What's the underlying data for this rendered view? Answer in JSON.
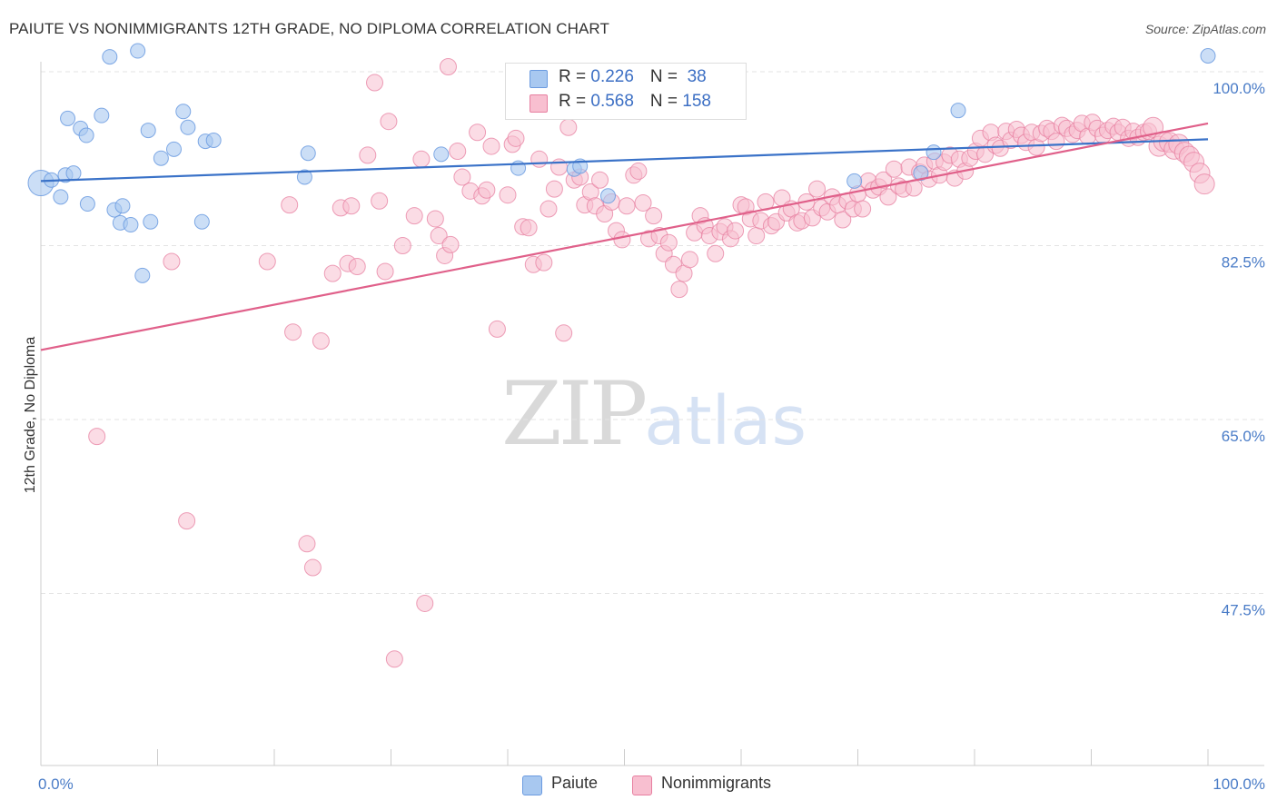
{
  "header": {
    "title": "PAIUTE VS NONIMMIGRANTS 12TH GRADE, NO DIPLOMA CORRELATION CHART",
    "source": "Source: ZipAtlas.com"
  },
  "watermark": {
    "zip": "ZIP",
    "atlas": "atlas"
  },
  "legend": {
    "rows": [
      {
        "r_label": "R = ",
        "r_value": "0.226",
        "n_label": "N = ",
        "n_value": " 38",
        "color": "#a8c8f0",
        "border": "#6b9be0"
      },
      {
        "r_label": "R = ",
        "r_value": "0.568",
        "n_label": "N = ",
        "n_value": "158",
        "color": "#f8bfd0",
        "border": "#e77fa0"
      }
    ]
  },
  "bottom_legend": [
    {
      "label": "Paiute",
      "color": "#a8c8f0",
      "border": "#6b9be0"
    },
    {
      "label": "Nonimmigrants",
      "color": "#f8bfd0",
      "border": "#e77fa0"
    }
  ],
  "chart_data": {
    "type": "scatter",
    "title": "PAIUTE VS NONIMMIGRANTS 12TH GRADE, NO DIPLOMA CORRELATION CHART",
    "xlabel": "",
    "ylabel": "12th Grade, No Diploma",
    "xlim": [
      0,
      100
    ],
    "ylim": [
      33,
      101.5
    ],
    "x_tick_labels": [
      "0.0%",
      "100.0%"
    ],
    "y_ticks": [
      100.0,
      82.5,
      65.0,
      47.5
    ],
    "y_tick_labels": [
      "100.0%",
      "82.5%",
      "65.0%",
      "47.5%"
    ],
    "grid": true,
    "colors": {
      "paiute": "#6b9be0",
      "paiute_fill": "#a8c8f0",
      "paiute_line": "#3a72c8",
      "nonimmigrants": "#e77fa0",
      "nonimmigrants_fill": "#f8bfd0",
      "nonimmigrants_line": "#e0608a"
    },
    "series": [
      {
        "name": "Paiute",
        "trend": [
          [
            0,
            89.0
          ],
          [
            100,
            93.2
          ]
        ],
        "points": [
          [
            0.0,
            88.8
          ],
          [
            0.9,
            89.1
          ],
          [
            1.7,
            87.4
          ],
          [
            2.1,
            89.6
          ],
          [
            2.3,
            95.3
          ],
          [
            2.8,
            89.8
          ],
          [
            3.4,
            94.3
          ],
          [
            3.9,
            93.6
          ],
          [
            4.0,
            86.7
          ],
          [
            5.2,
            95.6
          ],
          [
            5.9,
            101.5
          ],
          [
            6.3,
            86.1
          ],
          [
            6.8,
            84.8
          ],
          [
            7.0,
            86.5
          ],
          [
            7.7,
            84.6
          ],
          [
            8.3,
            102.1
          ],
          [
            8.7,
            79.5
          ],
          [
            9.2,
            94.1
          ],
          [
            9.4,
            84.9
          ],
          [
            10.3,
            91.3
          ],
          [
            11.4,
            92.2
          ],
          [
            12.2,
            96.0
          ],
          [
            12.6,
            94.4
          ],
          [
            13.8,
            84.9
          ],
          [
            14.1,
            93.0
          ],
          [
            14.8,
            93.1
          ],
          [
            22.6,
            89.4
          ],
          [
            22.9,
            91.8
          ],
          [
            34.3,
            91.7
          ],
          [
            40.9,
            90.3
          ],
          [
            45.7,
            90.2
          ],
          [
            46.2,
            90.5
          ],
          [
            48.6,
            87.5
          ],
          [
            69.7,
            89.0
          ],
          [
            75.4,
            89.8
          ],
          [
            76.5,
            91.9
          ],
          [
            78.6,
            96.1
          ],
          [
            100.0,
            101.6
          ]
        ]
      },
      {
        "name": "Nonimmigrants",
        "trend": [
          [
            0,
            72.0
          ],
          [
            100,
            94.8
          ]
        ],
        "points": [
          [
            4.8,
            63.3
          ],
          [
            11.2,
            80.9
          ],
          [
            12.5,
            54.8
          ],
          [
            19.4,
            80.9
          ],
          [
            21.3,
            86.6
          ],
          [
            21.6,
            73.8
          ],
          [
            22.8,
            52.5
          ],
          [
            23.3,
            50.1
          ],
          [
            24.0,
            72.9
          ],
          [
            25.0,
            79.7
          ],
          [
            25.7,
            86.3
          ],
          [
            26.3,
            80.7
          ],
          [
            26.6,
            86.5
          ],
          [
            27.1,
            80.4
          ],
          [
            28.0,
            91.6
          ],
          [
            28.6,
            98.9
          ],
          [
            29.0,
            87.0
          ],
          [
            29.5,
            79.9
          ],
          [
            29.8,
            95.0
          ],
          [
            30.3,
            40.9
          ],
          [
            31.0,
            82.5
          ],
          [
            32.0,
            85.5
          ],
          [
            32.6,
            91.2
          ],
          [
            32.9,
            46.5
          ],
          [
            33.8,
            85.2
          ],
          [
            34.1,
            83.5
          ],
          [
            34.6,
            81.5
          ],
          [
            34.9,
            100.5
          ],
          [
            35.1,
            82.6
          ],
          [
            35.7,
            92.0
          ],
          [
            36.1,
            89.4
          ],
          [
            36.8,
            88.0
          ],
          [
            37.4,
            93.9
          ],
          [
            37.8,
            87.5
          ],
          [
            38.2,
            88.1
          ],
          [
            38.6,
            92.5
          ],
          [
            39.1,
            74.1
          ],
          [
            40.0,
            87.6
          ],
          [
            40.4,
            92.7
          ],
          [
            40.7,
            93.3
          ],
          [
            41.3,
            84.4
          ],
          [
            41.8,
            84.3
          ],
          [
            42.2,
            80.6
          ],
          [
            42.7,
            91.2
          ],
          [
            43.1,
            80.8
          ],
          [
            43.5,
            86.2
          ],
          [
            44.0,
            88.2
          ],
          [
            44.4,
            90.4
          ],
          [
            44.8,
            73.7
          ],
          [
            45.2,
            94.4
          ],
          [
            45.7,
            89.1
          ],
          [
            46.2,
            89.4
          ],
          [
            46.6,
            86.6
          ],
          [
            47.1,
            87.9
          ],
          [
            47.5,
            86.5
          ],
          [
            47.9,
            89.1
          ],
          [
            48.3,
            85.7
          ],
          [
            48.9,
            86.9
          ],
          [
            49.3,
            84.0
          ],
          [
            49.8,
            83.1
          ],
          [
            50.2,
            86.5
          ],
          [
            50.8,
            89.6
          ],
          [
            51.2,
            90.0
          ],
          [
            51.6,
            86.8
          ],
          [
            52.1,
            83.2
          ],
          [
            52.5,
            85.5
          ],
          [
            53.0,
            83.5
          ],
          [
            53.4,
            81.7
          ],
          [
            53.8,
            82.8
          ],
          [
            54.2,
            80.6
          ],
          [
            54.7,
            78.1
          ],
          [
            55.1,
            79.7
          ],
          [
            55.6,
            81.1
          ],
          [
            56.0,
            83.8
          ],
          [
            56.5,
            85.5
          ],
          [
            56.9,
            84.5
          ],
          [
            57.3,
            83.5
          ],
          [
            57.8,
            81.7
          ],
          [
            58.2,
            83.9
          ],
          [
            58.6,
            84.4
          ],
          [
            59.1,
            83.2
          ],
          [
            59.5,
            84.0
          ],
          [
            60.0,
            86.6
          ],
          [
            60.4,
            86.4
          ],
          [
            60.8,
            85.2
          ],
          [
            61.3,
            83.5
          ],
          [
            61.7,
            85.0
          ],
          [
            62.1,
            86.9
          ],
          [
            62.6,
            84.5
          ],
          [
            63.0,
            84.9
          ],
          [
            63.5,
            87.3
          ],
          [
            63.9,
            85.8
          ],
          [
            64.3,
            86.2
          ],
          [
            64.8,
            84.8
          ],
          [
            65.2,
            85.0
          ],
          [
            65.6,
            86.9
          ],
          [
            66.1,
            85.3
          ],
          [
            66.5,
            88.2
          ],
          [
            66.9,
            86.3
          ],
          [
            67.4,
            85.9
          ],
          [
            67.8,
            87.4
          ],
          [
            68.3,
            86.6
          ],
          [
            68.7,
            85.1
          ],
          [
            69.1,
            87.0
          ],
          [
            69.6,
            86.2
          ],
          [
            70.0,
            87.7
          ],
          [
            70.4,
            86.2
          ],
          [
            70.9,
            89.0
          ],
          [
            71.3,
            88.1
          ],
          [
            71.8,
            88.4
          ],
          [
            72.2,
            89.1
          ],
          [
            72.6,
            87.4
          ],
          [
            73.1,
            90.2
          ],
          [
            73.5,
            88.5
          ],
          [
            73.9,
            88.2
          ],
          [
            74.4,
            90.4
          ],
          [
            74.8,
            88.3
          ],
          [
            75.3,
            89.9
          ],
          [
            75.7,
            90.6
          ],
          [
            76.1,
            89.2
          ],
          [
            76.6,
            91.0
          ],
          [
            77.0,
            89.6
          ],
          [
            77.4,
            90.9
          ],
          [
            77.9,
            91.6
          ],
          [
            78.3,
            89.3
          ],
          [
            78.7,
            91.2
          ],
          [
            79.2,
            90.0
          ],
          [
            79.6,
            91.3
          ],
          [
            80.1,
            92.0
          ],
          [
            80.5,
            93.3
          ],
          [
            80.9,
            91.7
          ],
          [
            81.4,
            93.9
          ],
          [
            81.8,
            92.6
          ],
          [
            82.2,
            92.3
          ],
          [
            82.7,
            94.0
          ],
          [
            83.1,
            93.1
          ],
          [
            83.6,
            94.2
          ],
          [
            84.0,
            93.6
          ],
          [
            84.4,
            92.9
          ],
          [
            84.9,
            93.9
          ],
          [
            85.3,
            92.4
          ],
          [
            85.7,
            93.8
          ],
          [
            86.2,
            94.3
          ],
          [
            86.6,
            94.0
          ],
          [
            87.0,
            93.0
          ],
          [
            87.5,
            94.6
          ],
          [
            87.9,
            94.3
          ],
          [
            88.4,
            93.7
          ],
          [
            88.8,
            94.1
          ],
          [
            89.2,
            94.8
          ],
          [
            89.7,
            93.5
          ],
          [
            90.1,
            94.9
          ],
          [
            90.5,
            94.3
          ],
          [
            91.0,
            93.6
          ],
          [
            91.4,
            94.1
          ],
          [
            91.9,
            94.5
          ],
          [
            92.3,
            93.9
          ],
          [
            92.7,
            94.4
          ],
          [
            93.2,
            93.3
          ],
          [
            93.6,
            94.0
          ],
          [
            94.0,
            93.4
          ],
          [
            94.5,
            93.9
          ],
          [
            94.9,
            94.0
          ],
          [
            95.3,
            94.4
          ],
          [
            95.8,
            92.5
          ],
          [
            96.2,
            93.0
          ],
          [
            96.7,
            92.9
          ],
          [
            97.1,
            92.2
          ],
          [
            97.5,
            92.7
          ],
          [
            98.0,
            91.9
          ],
          [
            98.4,
            91.5
          ],
          [
            98.8,
            90.9
          ],
          [
            99.3,
            89.8
          ],
          [
            99.7,
            88.7
          ]
        ]
      }
    ]
  }
}
